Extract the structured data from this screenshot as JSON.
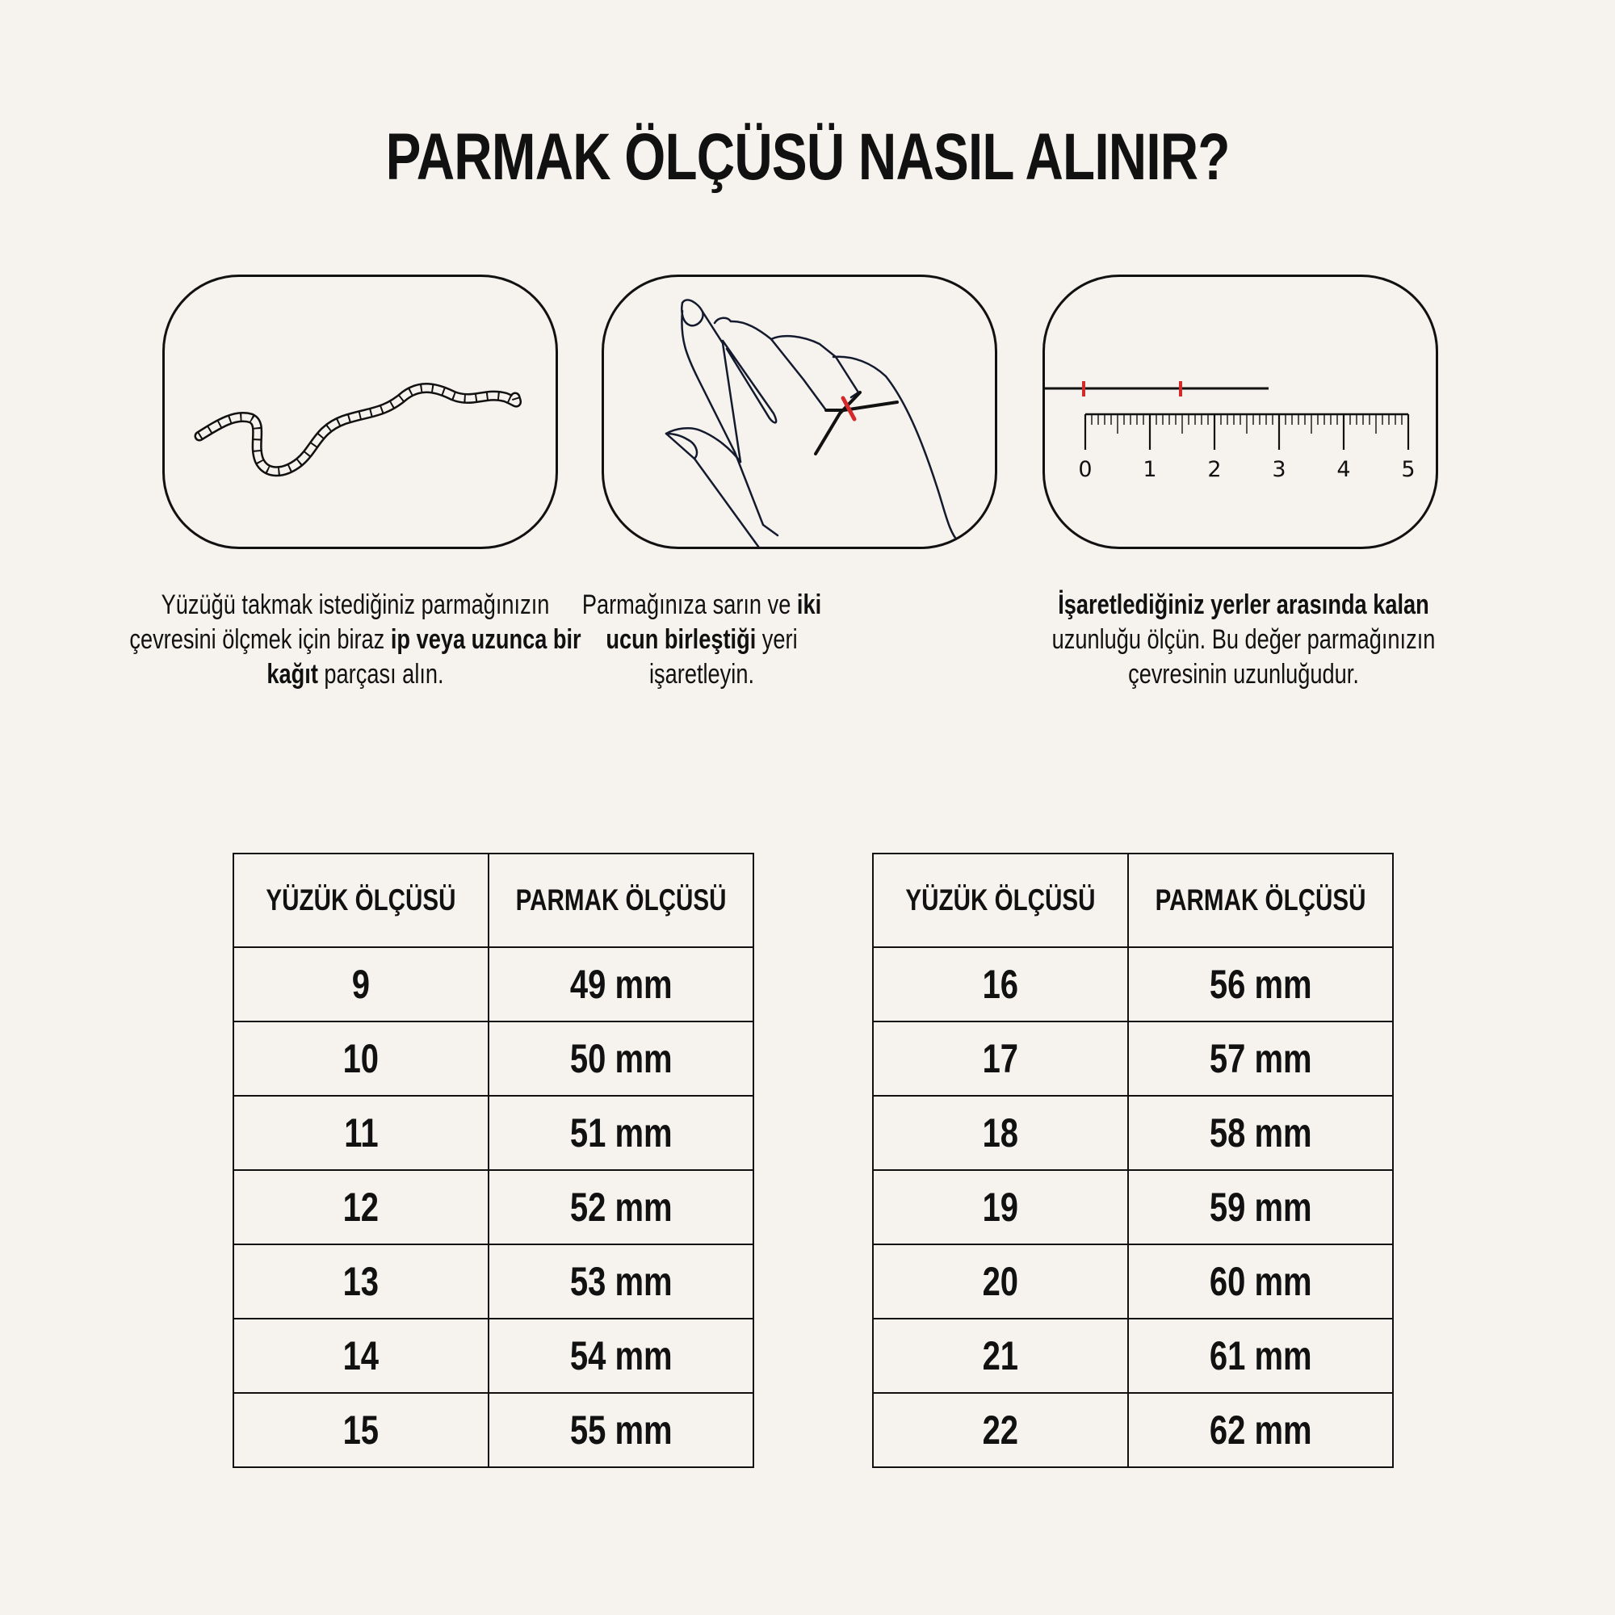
{
  "title": "PARMAK ÖLÇÜSÜ NASIL ALINIR?",
  "accent_color": "#d42a2a",
  "steps": [
    {
      "icon": "rope-icon",
      "segments": [
        {
          "text": "Yüzüğü takmak istediğiniz parmağınızın çevresini ölçmek için biraz ",
          "bold": false
        },
        {
          "text": "ip veya uzunca bir kağıt",
          "bold": true
        },
        {
          "text": " parçası alın.",
          "bold": false
        }
      ]
    },
    {
      "icon": "hand-with-string-icon",
      "segments": [
        {
          "text": "Parmağınıza sarın ve ",
          "bold": false
        },
        {
          "text": "iki ucun birleştiği",
          "bold": true
        },
        {
          "text": " yeri işaretleyin.",
          "bold": false
        }
      ]
    },
    {
      "icon": "ruler-icon",
      "ruler_labels": [
        "0",
        "1",
        "2",
        "3",
        "4",
        "5"
      ],
      "segments": [
        {
          "text": "İşaretlediğiniz yerler arasında kalan",
          "bold": true
        },
        {
          "text": " uzunluğu ölçün. Bu değer parmağınızın çevresinin uzunluğudur.",
          "bold": false
        }
      ]
    }
  ],
  "tables": [
    {
      "headers": [
        "YÜZÜK ÖLÇÜSÜ",
        "PARMAK ÖLÇÜSÜ"
      ],
      "rows": [
        [
          "9",
          "49 mm"
        ],
        [
          "10",
          "50 mm"
        ],
        [
          "11",
          "51 mm"
        ],
        [
          "12",
          "52 mm"
        ],
        [
          "13",
          "53 mm"
        ],
        [
          "14",
          "54 mm"
        ],
        [
          "15",
          "55 mm"
        ]
      ]
    },
    {
      "headers": [
        "YÜZÜK ÖLÇÜSÜ",
        "PARMAK ÖLÇÜSÜ"
      ],
      "rows": [
        [
          "16",
          "56 mm"
        ],
        [
          "17",
          "57 mm"
        ],
        [
          "18",
          "58 mm"
        ],
        [
          "19",
          "59 mm"
        ],
        [
          "20",
          "60 mm"
        ],
        [
          "21",
          "61 mm"
        ],
        [
          "22",
          "62 mm"
        ]
      ]
    }
  ]
}
